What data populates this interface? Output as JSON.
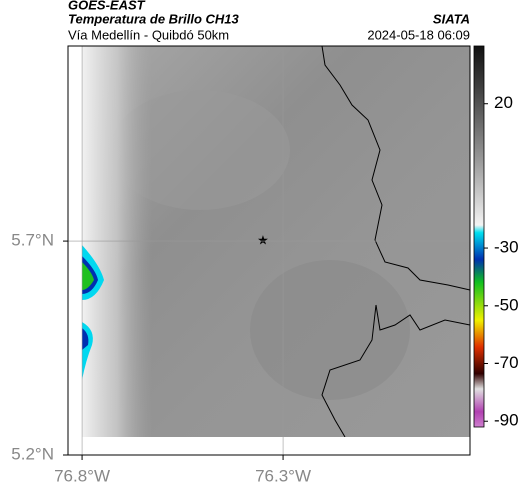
{
  "header": {
    "title": "GOES-EAST",
    "subtitle": "Temperatura de Brillo CH13",
    "location": "Vía Medellín - Quibdó 50km",
    "source": "SIATA",
    "timestamp": "2024-05-18 06:09"
  },
  "map": {
    "xlim": [
      -76.835,
      -75.835
    ],
    "ylim": [
      5.2,
      6.156
    ],
    "xticks": [
      {
        "value": -76.8,
        "label": "76.8°W"
      },
      {
        "value": -76.3,
        "label": "76.3°W"
      }
    ],
    "yticks": [
      {
        "value": 5.2,
        "label": "5.2°N"
      },
      {
        "value": 5.7,
        "label": "5.7°N"
      }
    ],
    "grid": true
  },
  "colorbar": {
    "lim": [
      40,
      -92
    ],
    "ticks": [
      20,
      -30,
      -50,
      -70,
      -90
    ]
  }
}
